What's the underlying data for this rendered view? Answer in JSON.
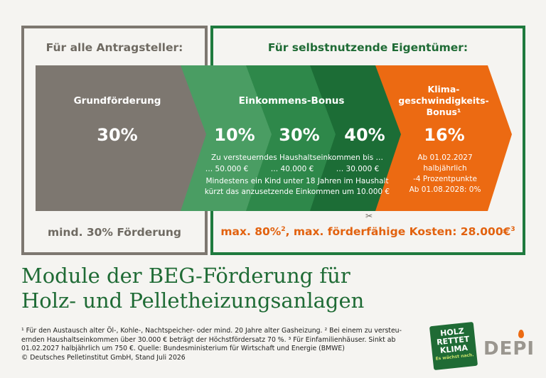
{
  "left_header": "Für alle Antragsteller:",
  "right_header": "Für selbstnutzende Eigentümer:",
  "grund": {
    "label": "Grundförderung",
    "value": "30%"
  },
  "einkommen": {
    "label": "Einkommens-Bonus",
    "values": [
      "10%",
      "30%",
      "40%"
    ],
    "desc1": "Zu versteuerndes Haushaltseinkommen bis …",
    "thresholds": [
      "… 50.000 €",
      "… 40.000 €",
      "… 30.000 €"
    ],
    "desc2": "Mindestens ein Kind unter 18 Jahren im Haushalt",
    "desc3": "kürzt das anzusetzende Einkommen um 10.000 €"
  },
  "klima": {
    "label_lines": [
      "Klima-",
      "geschwindigkeits-",
      "Bonus¹"
    ],
    "value": "16%",
    "desc_lines": [
      "Ab 01.02.2027",
      "halbjährlich",
      "-4 Prozentpunkte",
      "Ab 01.08.2028: 0%"
    ]
  },
  "left_footer": "mind. 30% Förderung",
  "right_footer": {
    "part1": "max. 80%",
    "sup1": "2",
    "part2": ", max. förderfähige Kosten: 28.000€",
    "sup2": "3"
  },
  "title_lines": [
    "Module der BEG-Förderung für",
    "Holz- und Pelletheizungsanlagen"
  ],
  "footnote_lines": [
    "¹ Für den Austausch alter Öl-, Kohle-, Nachtspeicher- oder mind. 20 Jahre alter Gasheizung. ² Bei einem zu versteu-",
    "ernden Haushaltseinkommen über 30.000 € beträgt der Höchstfördersatz 70 %. ³ Für Einfamilienhäuser. Sinkt ab",
    "01.02.2027 halbjährlich um 750 €. Quelle: Bundesministerium für Wirtschaft und Energie (BMWE)",
    "© Deutsches Pelletinstitut GmbH, Stand Juli 2026"
  ],
  "logo_holz_lines": [
    "HOLZ",
    "RETTET",
    "KLIMA",
    "Es wächst nach."
  ],
  "logo_depi": "DEPI",
  "colors": {
    "grey": "#7d7770",
    "green_light": "#3f9a5c",
    "green_mid": "#2a8547",
    "green_dark": "#1e7038",
    "green_darkest": "#16612d",
    "orange": "#ec6a12"
  }
}
